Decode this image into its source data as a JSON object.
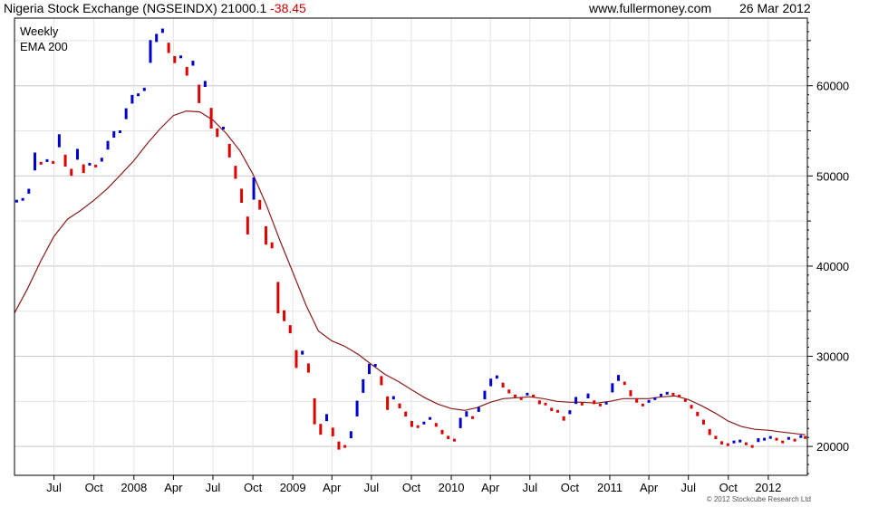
{
  "header": {
    "title": "Nigeria Stock Exchange (NGSEINDX) 21000.1",
    "change": "-38.45",
    "site": "www.fullermoney.com",
    "date": "26 Mar 2012"
  },
  "legend": {
    "series1": "Weekly",
    "series2": "EMA 200"
  },
  "copyright": "© 2012 Stockcube Research Ltd",
  "colors": {
    "up": "#0000cc",
    "down": "#dd0000",
    "ema": "#8b1a1a",
    "grid": "#cfcfcf",
    "axis": "#000000"
  },
  "chart_data": {
    "type": "line",
    "title": "Nigeria Stock Exchange (NGSEINDX) 21000.1 -38.45",
    "ylim": [
      16800,
      67500
    ],
    "xlim": [
      "2007-04-01",
      "2012-03-31"
    ],
    "y_ticks": [
      20000,
      30000,
      40000,
      50000,
      60000
    ],
    "x_ticks": [
      {
        "label": "Jul",
        "date": "2007-07-01"
      },
      {
        "label": "Oct",
        "date": "2007-10-01"
      },
      {
        "label": "2008",
        "date": "2008-01-01"
      },
      {
        "label": "Apr",
        "date": "2008-04-01"
      },
      {
        "label": "Jul",
        "date": "2008-07-01"
      },
      {
        "label": "Oct",
        "date": "2008-10-01"
      },
      {
        "label": "2009",
        "date": "2009-01-01"
      },
      {
        "label": "Apr",
        "date": "2009-04-01"
      },
      {
        "label": "Jul",
        "date": "2009-07-01"
      },
      {
        "label": "Oct",
        "date": "2009-10-01"
      },
      {
        "label": "2010",
        "date": "2010-01-01"
      },
      {
        "label": "Apr",
        "date": "2010-04-01"
      },
      {
        "label": "Jul",
        "date": "2010-07-01"
      },
      {
        "label": "Oct",
        "date": "2010-10-01"
      },
      {
        "label": "2011",
        "date": "2011-01-01"
      },
      {
        "label": "Apr",
        "date": "2011-04-01"
      },
      {
        "label": "Jul",
        "date": "2011-07-01"
      },
      {
        "label": "Oct",
        "date": "2011-10-01"
      },
      {
        "label": "2012",
        "date": "2012-01-01"
      }
    ],
    "grid": true,
    "legend_position": "top-left",
    "series": [
      {
        "name": "Weekly",
        "style": "weekly-bars",
        "points": [
          [
            "2007-04-06",
            47200
          ],
          [
            "2007-04-20",
            47400
          ],
          [
            "2007-05-04",
            48300
          ],
          [
            "2007-05-18",
            51600
          ],
          [
            "2007-06-01",
            51400
          ],
          [
            "2007-06-15",
            51700
          ],
          [
            "2007-06-29",
            51500
          ],
          [
            "2007-07-13",
            53900
          ],
          [
            "2007-07-27",
            51700
          ],
          [
            "2007-08-10",
            50400
          ],
          [
            "2007-08-24",
            52400
          ],
          [
            "2007-09-07",
            50800
          ],
          [
            "2007-09-21",
            51300
          ],
          [
            "2007-10-05",
            51100
          ],
          [
            "2007-10-19",
            51800
          ],
          [
            "2007-11-02",
            53400
          ],
          [
            "2007-11-16",
            54600
          ],
          [
            "2007-11-30",
            54900
          ],
          [
            "2007-12-14",
            56900
          ],
          [
            "2007-12-28",
            58500
          ],
          [
            "2008-01-11",
            59000
          ],
          [
            "2008-01-25",
            59600
          ],
          [
            "2008-02-08",
            63800
          ],
          [
            "2008-02-22",
            65300
          ],
          [
            "2008-03-07",
            66100
          ],
          [
            "2008-03-21",
            64200
          ],
          [
            "2008-04-04",
            62900
          ],
          [
            "2008-04-18",
            63200
          ],
          [
            "2008-05-02",
            61600
          ],
          [
            "2008-05-16",
            62500
          ],
          [
            "2008-05-30",
            59100
          ],
          [
            "2008-06-13",
            60200
          ],
          [
            "2008-06-27",
            56400
          ],
          [
            "2008-07-11",
            54800
          ],
          [
            "2008-07-25",
            55300
          ],
          [
            "2008-08-08",
            52800
          ],
          [
            "2008-08-22",
            50400
          ],
          [
            "2008-09-05",
            47800
          ],
          [
            "2008-09-19",
            44500
          ],
          [
            "2008-10-03",
            48600
          ],
          [
            "2008-10-17",
            46800
          ],
          [
            "2008-10-31",
            43400
          ],
          [
            "2008-11-14",
            42300
          ],
          [
            "2008-11-28",
            36500
          ],
          [
            "2008-12-12",
            34500
          ],
          [
            "2008-12-26",
            33000
          ],
          [
            "2009-01-09",
            29700
          ],
          [
            "2009-01-23",
            30400
          ],
          [
            "2009-02-06",
            28700
          ],
          [
            "2009-02-20",
            23900
          ],
          [
            "2009-03-06",
            21900
          ],
          [
            "2009-03-20",
            23200
          ],
          [
            "2009-04-03",
            21600
          ],
          [
            "2009-04-17",
            20100
          ],
          [
            "2009-05-01",
            20000
          ],
          [
            "2009-05-15",
            21300
          ],
          [
            "2009-05-29",
            24200
          ],
          [
            "2009-06-12",
            26700
          ],
          [
            "2009-06-26",
            28600
          ],
          [
            "2009-07-10",
            29000
          ],
          [
            "2009-07-24",
            27300
          ],
          [
            "2009-08-07",
            24800
          ],
          [
            "2009-08-21",
            25400
          ],
          [
            "2009-09-04",
            24500
          ],
          [
            "2009-09-18",
            23600
          ],
          [
            "2009-10-02",
            22500
          ],
          [
            "2009-10-16",
            22200
          ],
          [
            "2009-10-30",
            22600
          ],
          [
            "2009-11-13",
            23100
          ],
          [
            "2009-11-27",
            22400
          ],
          [
            "2009-12-11",
            21600
          ],
          [
            "2009-12-25",
            21000
          ],
          [
            "2010-01-08",
            20700
          ],
          [
            "2010-01-22",
            22600
          ],
          [
            "2010-02-05",
            23600
          ],
          [
            "2010-02-19",
            23200
          ],
          [
            "2010-03-05",
            24100
          ],
          [
            "2010-03-19",
            25700
          ],
          [
            "2010-04-02",
            27100
          ],
          [
            "2010-04-16",
            27700
          ],
          [
            "2010-04-30",
            26800
          ],
          [
            "2010-05-14",
            26100
          ],
          [
            "2010-05-28",
            25600
          ],
          [
            "2010-06-11",
            25300
          ],
          [
            "2010-06-25",
            25800
          ],
          [
            "2010-07-09",
            25600
          ],
          [
            "2010-07-23",
            24900
          ],
          [
            "2010-08-06",
            24700
          ],
          [
            "2010-08-20",
            24100
          ],
          [
            "2010-09-03",
            23900
          ],
          [
            "2010-09-17",
            23100
          ],
          [
            "2010-10-01",
            23800
          ],
          [
            "2010-10-15",
            25100
          ],
          [
            "2010-10-29",
            24700
          ],
          [
            "2010-11-12",
            25600
          ],
          [
            "2010-11-26",
            24900
          ],
          [
            "2010-12-10",
            24600
          ],
          [
            "2010-12-24",
            24800
          ],
          [
            "2011-01-07",
            26500
          ],
          [
            "2011-01-21",
            27600
          ],
          [
            "2011-02-04",
            27000
          ],
          [
            "2011-02-18",
            25900
          ],
          [
            "2011-03-04",
            25100
          ],
          [
            "2011-03-18",
            24600
          ],
          [
            "2011-04-01",
            25000
          ],
          [
            "2011-04-15",
            25300
          ],
          [
            "2011-04-29",
            25700
          ],
          [
            "2011-05-13",
            25900
          ],
          [
            "2011-05-27",
            25800
          ],
          [
            "2011-06-10",
            25600
          ],
          [
            "2011-06-24",
            25100
          ],
          [
            "2011-07-08",
            24400
          ],
          [
            "2011-07-22",
            23600
          ],
          [
            "2011-08-05",
            22700
          ],
          [
            "2011-08-19",
            21600
          ],
          [
            "2011-09-02",
            21000
          ],
          [
            "2011-09-16",
            20400
          ],
          [
            "2011-09-30",
            20200
          ],
          [
            "2011-10-14",
            20500
          ],
          [
            "2011-10-28",
            20600
          ],
          [
            "2011-11-11",
            20300
          ],
          [
            "2011-11-25",
            20000
          ],
          [
            "2011-12-09",
            20700
          ],
          [
            "2011-12-23",
            20800
          ],
          [
            "2012-01-06",
            21000
          ],
          [
            "2012-01-20",
            20800
          ],
          [
            "2012-02-03",
            20500
          ],
          [
            "2012-02-17",
            20900
          ],
          [
            "2012-03-02",
            20700
          ],
          [
            "2012-03-16",
            21100
          ],
          [
            "2012-03-26",
            21000
          ]
        ]
      },
      {
        "name": "EMA 200",
        "style": "line",
        "points": [
          [
            "2007-04-01",
            34800
          ],
          [
            "2007-05-01",
            37500
          ],
          [
            "2007-06-01",
            40600
          ],
          [
            "2007-07-01",
            43300
          ],
          [
            "2007-08-01",
            45200
          ],
          [
            "2007-09-01",
            46200
          ],
          [
            "2007-10-01",
            47300
          ],
          [
            "2007-11-01",
            48600
          ],
          [
            "2007-12-01",
            50100
          ],
          [
            "2008-01-01",
            51700
          ],
          [
            "2008-02-01",
            53600
          ],
          [
            "2008-03-01",
            55200
          ],
          [
            "2008-04-01",
            56700
          ],
          [
            "2008-05-01",
            57200
          ],
          [
            "2008-06-01",
            57100
          ],
          [
            "2008-07-01",
            56200
          ],
          [
            "2008-08-01",
            54700
          ],
          [
            "2008-09-01",
            52800
          ],
          [
            "2008-10-01",
            50200
          ],
          [
            "2008-11-01",
            46800
          ],
          [
            "2008-12-01",
            43000
          ],
          [
            "2009-01-01",
            39300
          ],
          [
            "2009-02-01",
            35600
          ],
          [
            "2009-03-01",
            32800
          ],
          [
            "2009-04-01",
            31700
          ],
          [
            "2009-05-01",
            31100
          ],
          [
            "2009-06-01",
            30200
          ],
          [
            "2009-07-01",
            29100
          ],
          [
            "2009-08-01",
            28000
          ],
          [
            "2009-09-01",
            27200
          ],
          [
            "2009-10-01",
            26300
          ],
          [
            "2009-11-01",
            25400
          ],
          [
            "2009-12-01",
            24700
          ],
          [
            "2010-01-01",
            24200
          ],
          [
            "2010-02-01",
            24000
          ],
          [
            "2010-03-01",
            24300
          ],
          [
            "2010-04-01",
            24900
          ],
          [
            "2010-05-01",
            25300
          ],
          [
            "2010-06-01",
            25400
          ],
          [
            "2010-07-01",
            25500
          ],
          [
            "2010-08-01",
            25300
          ],
          [
            "2010-09-01",
            25000
          ],
          [
            "2010-10-01",
            24900
          ],
          [
            "2010-11-01",
            24900
          ],
          [
            "2010-12-01",
            24800
          ],
          [
            "2011-01-01",
            25000
          ],
          [
            "2011-02-01",
            25300
          ],
          [
            "2011-03-01",
            25300
          ],
          [
            "2011-04-01",
            25300
          ],
          [
            "2011-05-01",
            25500
          ],
          [
            "2011-06-01",
            25600
          ],
          [
            "2011-07-01",
            25200
          ],
          [
            "2011-08-01",
            24500
          ],
          [
            "2011-09-01",
            23700
          ],
          [
            "2011-10-01",
            22800
          ],
          [
            "2011-11-01",
            22200
          ],
          [
            "2011-12-01",
            21900
          ],
          [
            "2012-01-01",
            21800
          ],
          [
            "2012-02-01",
            21600
          ],
          [
            "2012-03-26",
            21300
          ]
        ]
      }
    ]
  }
}
